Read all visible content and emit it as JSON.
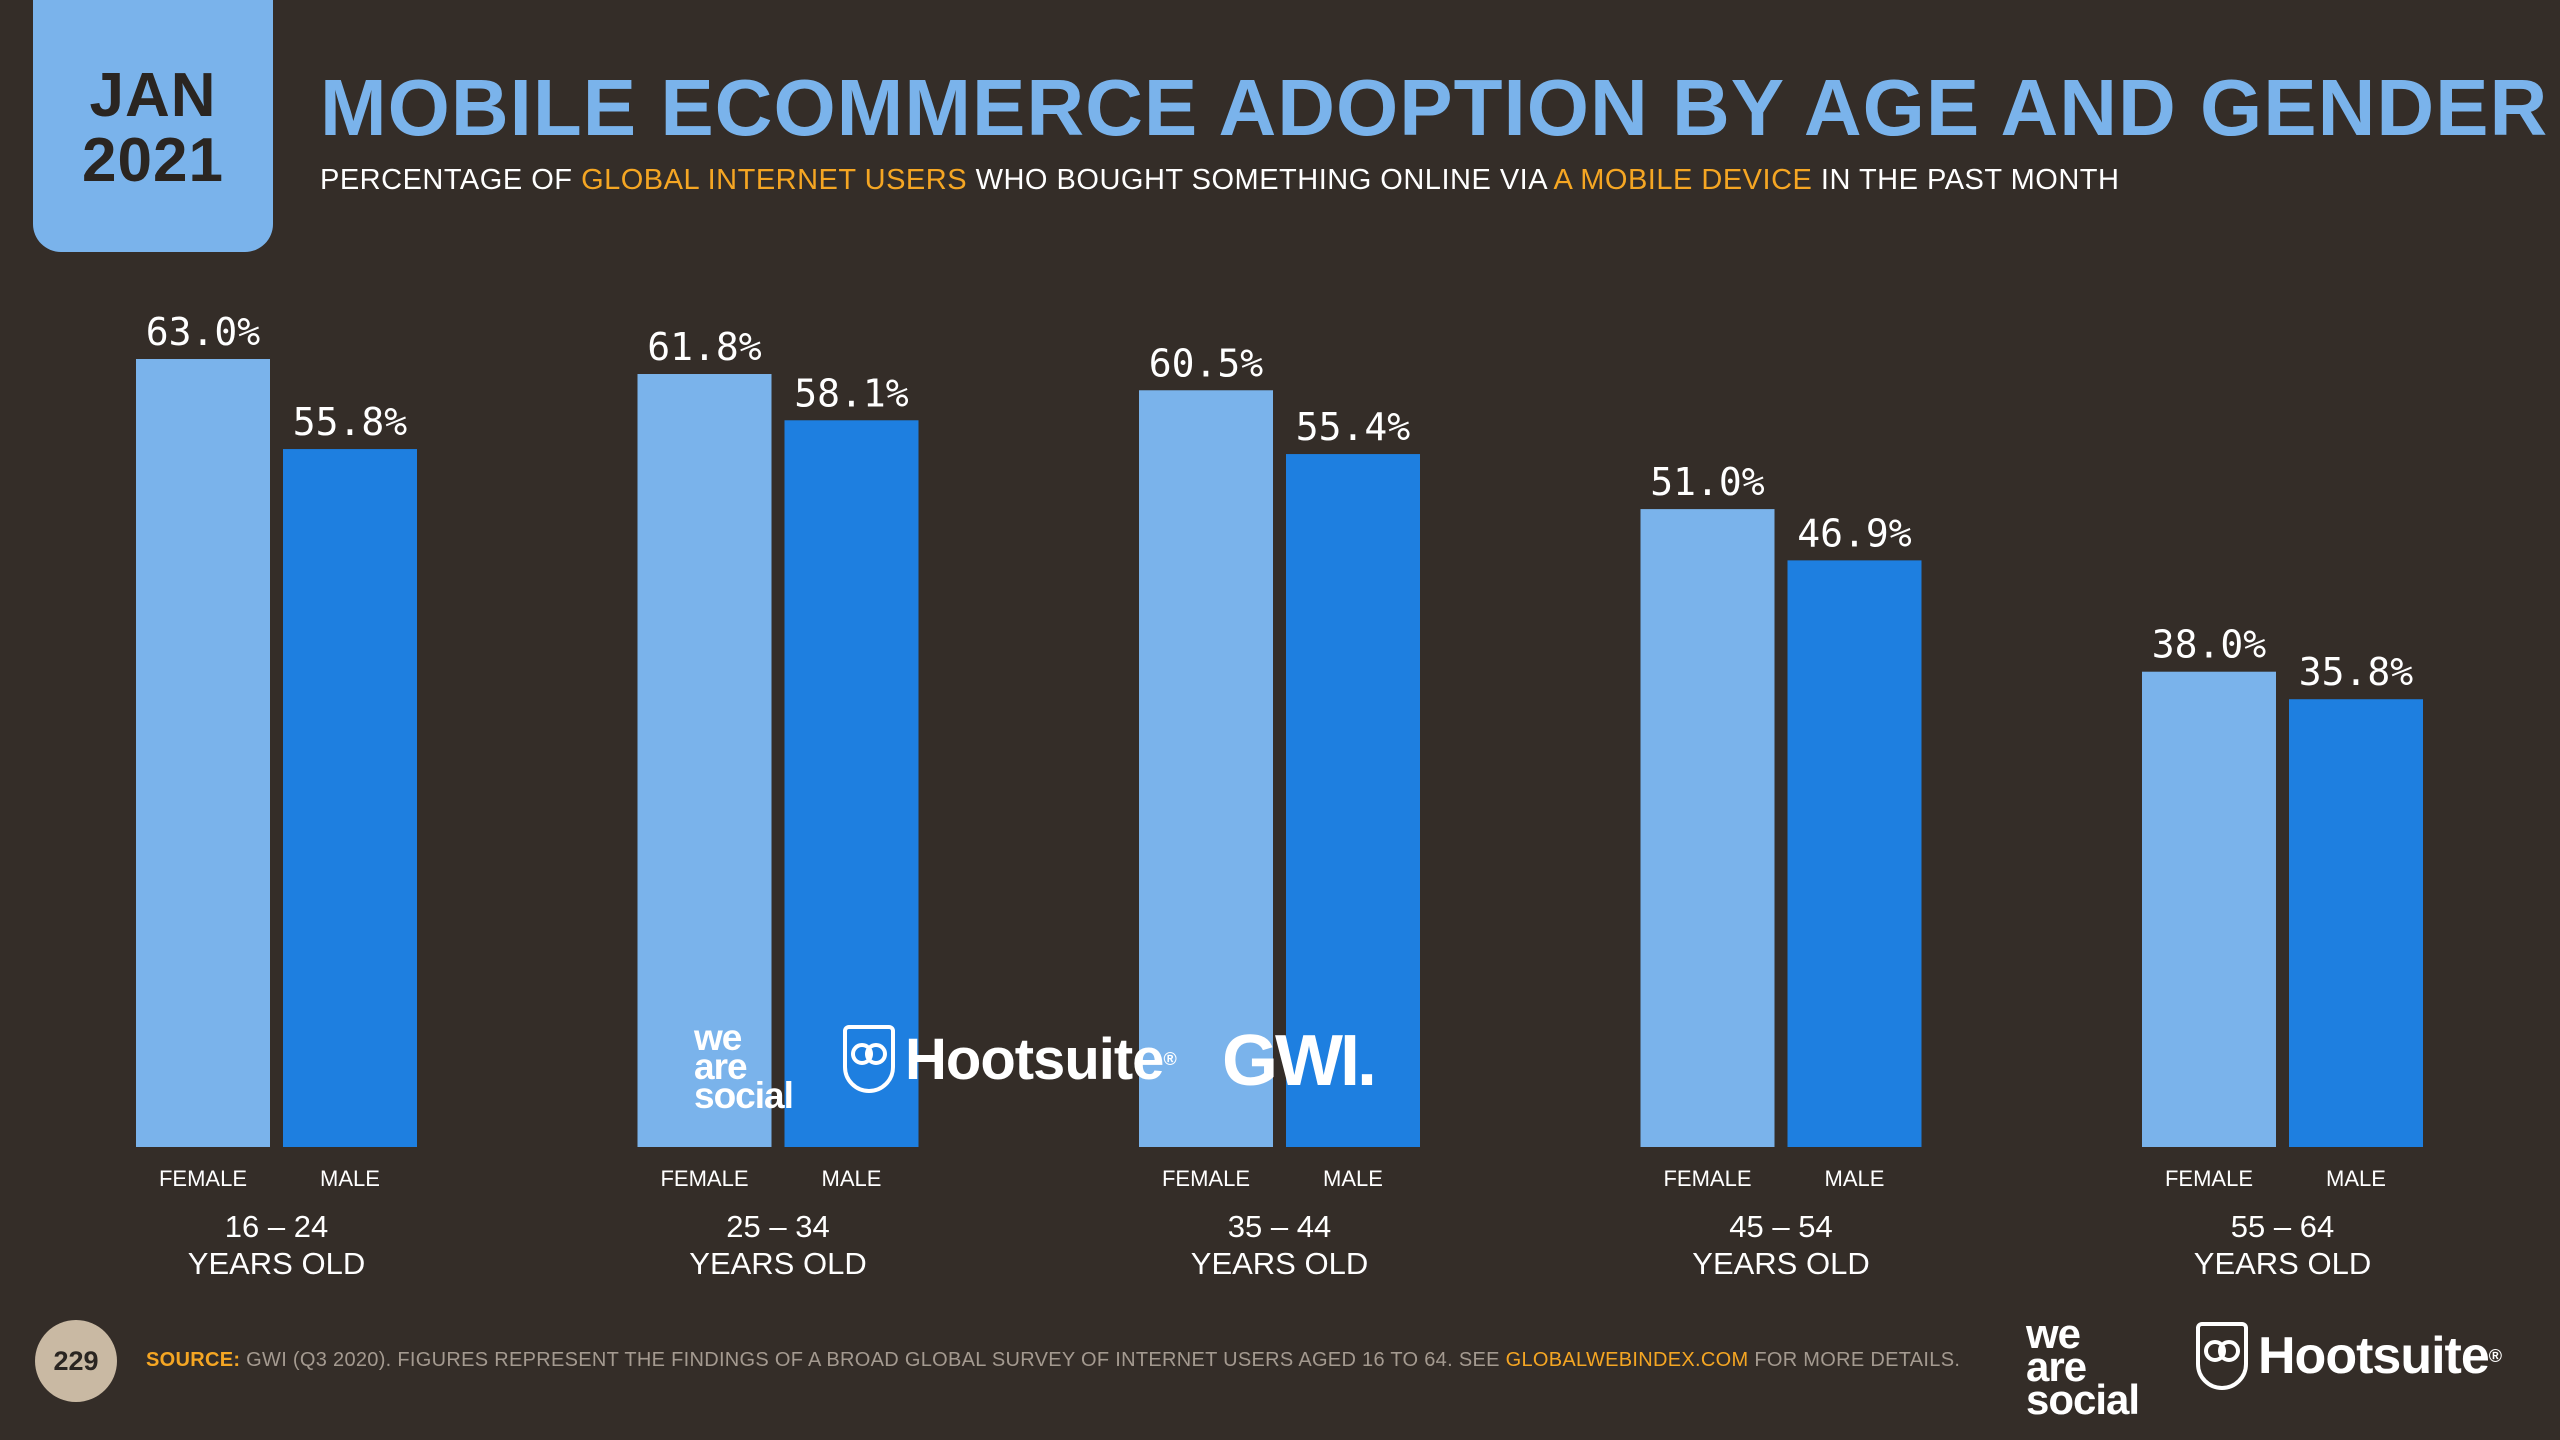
{
  "date_badge": {
    "month": "JAN",
    "year": "2021"
  },
  "title": "MOBILE ECOMMERCE ADOPTION BY AGE AND GENDER",
  "subtitle": {
    "part1": "PERCENTAGE OF ",
    "highlight1": "GLOBAL INTERNET USERS",
    "part2": " WHO BOUGHT SOMETHING ONLINE VIA ",
    "highlight2": "A MOBILE DEVICE",
    "part3": " IN THE PAST MONTH"
  },
  "colors": {
    "female": "#7ab3eb",
    "male": "#1e7fe0",
    "label": "#ffffff",
    "highlight": "#f5a623",
    "background": "#342d28"
  },
  "chart_data": {
    "type": "bar",
    "title": "MOBILE ECOMMERCE ADOPTION BY AGE AND GENDER",
    "xlabel": "",
    "ylabel": "",
    "ylim": [
      0,
      63
    ],
    "grid": false,
    "categories": [
      {
        "range": "16 – 24",
        "suffix": "YEARS OLD"
      },
      {
        "range": "25 – 34",
        "suffix": "YEARS OLD"
      },
      {
        "range": "35 – 44",
        "suffix": "YEARS OLD"
      },
      {
        "range": "45 – 54",
        "suffix": "YEARS OLD"
      },
      {
        "range": "55 – 64",
        "suffix": "YEARS OLD"
      }
    ],
    "series": [
      {
        "name": "FEMALE",
        "values": [
          63.0,
          61.8,
          60.5,
          51.0,
          38.0
        ],
        "labels": [
          "63.0%",
          "61.8%",
          "60.5%",
          "51.0%",
          "38.0%"
        ]
      },
      {
        "name": "MALE",
        "values": [
          55.8,
          58.1,
          55.4,
          46.9,
          35.8
        ],
        "labels": [
          "55.8%",
          "58.1%",
          "55.4%",
          "46.9%",
          "35.8%"
        ]
      }
    ]
  },
  "logos": {
    "we_are_social": [
      "we",
      "are",
      "social"
    ],
    "hootsuite": "Hootsuite",
    "hootsuite_mark": "®",
    "gwi": "GWI."
  },
  "footer": {
    "page_number": "229",
    "source_label": "SOURCE:",
    "source_text": " GWI (Q3 2020). FIGURES REPRESENT THE FINDINGS OF A BROAD GLOBAL SURVEY OF INTERNET USERS AGED 16 TO 64. SEE ",
    "source_link": "GLOBALWEBINDEX.COM",
    "source_tail": " FOR MORE DETAILS."
  }
}
